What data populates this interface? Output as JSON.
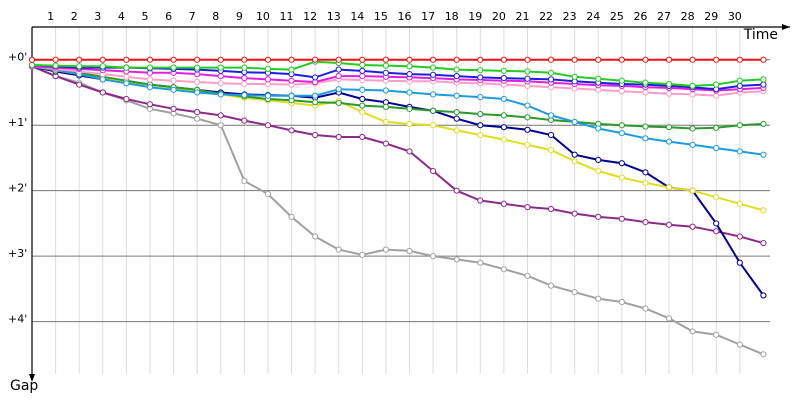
{
  "chart_data": {
    "type": "line",
    "x_label": "Time",
    "y_label": "Gap",
    "x": [
      0,
      1,
      2,
      3,
      4,
      5,
      6,
      7,
      8,
      9,
      10,
      11,
      12,
      13,
      14,
      15,
      16,
      17,
      18,
      19,
      20,
      21,
      22,
      23,
      24,
      25,
      26,
      27,
      28,
      29,
      30,
      31
    ],
    "xlim": [
      0,
      32
    ],
    "xticks": [
      1,
      2,
      3,
      4,
      5,
      6,
      7,
      8,
      9,
      10,
      11,
      12,
      13,
      14,
      15,
      16,
      17,
      18,
      19,
      20,
      21,
      22,
      23,
      24,
      25,
      26,
      27,
      28,
      29,
      30
    ],
    "ylim": [
      -0.5,
      4.8
    ],
    "yticks": [
      {
        "value": 0,
        "label": "+0'"
      },
      {
        "value": 1,
        "label": "+1'"
      },
      {
        "value": 2,
        "label": "+2'"
      },
      {
        "value": 3,
        "label": "+3'"
      },
      {
        "value": 4,
        "label": "+4'"
      }
    ],
    "y_inverted": true,
    "grid": true,
    "series": [
      {
        "color": "#a0a0a0",
        "values": [
          0.1,
          0.25,
          0.35,
          0.5,
          0.62,
          0.75,
          0.82,
          0.9,
          1.0,
          1.85,
          2.05,
          2.4,
          2.7,
          2.9,
          2.98,
          2.9,
          2.92,
          3.0,
          3.05,
          3.1,
          3.2,
          3.3,
          3.45,
          3.55,
          3.65,
          3.7,
          3.8,
          3.95,
          4.15,
          4.2,
          4.35,
          4.5
        ]
      },
      {
        "color": "#8c2a8c",
        "values": [
          0.1,
          0.25,
          0.38,
          0.5,
          0.6,
          0.68,
          0.75,
          0.8,
          0.85,
          0.93,
          1.0,
          1.08,
          1.15,
          1.18,
          1.18,
          1.28,
          1.4,
          1.7,
          2.0,
          2.15,
          2.2,
          2.25,
          2.28,
          2.35,
          2.4,
          2.43,
          2.48,
          2.52,
          2.55,
          2.62,
          2.7,
          2.8
        ]
      },
      {
        "color": "#000090",
        "values": [
          0.1,
          0.18,
          0.24,
          0.3,
          0.33,
          0.38,
          0.42,
          0.46,
          0.5,
          0.53,
          0.54,
          0.55,
          0.58,
          0.5,
          0.6,
          0.65,
          0.72,
          0.78,
          0.9,
          1.0,
          1.03,
          1.07,
          1.15,
          1.45,
          1.53,
          1.58,
          1.72,
          1.95,
          2.0,
          2.5,
          3.1,
          3.6
        ]
      },
      {
        "color": "#dede20",
        "values": [
          0.1,
          0.16,
          0.22,
          0.28,
          0.33,
          0.38,
          0.43,
          0.48,
          0.53,
          0.58,
          0.62,
          0.66,
          0.7,
          0.63,
          0.8,
          0.95,
          0.98,
          1.0,
          1.08,
          1.15,
          1.22,
          1.3,
          1.38,
          1.55,
          1.7,
          1.8,
          1.88,
          1.95,
          2.0,
          2.1,
          2.2,
          2.3
        ]
      },
      {
        "color": "#2a9a2a",
        "values": [
          0.1,
          0.15,
          0.2,
          0.26,
          0.32,
          0.38,
          0.42,
          0.46,
          0.52,
          0.56,
          0.6,
          0.62,
          0.65,
          0.66,
          0.7,
          0.72,
          0.75,
          0.78,
          0.8,
          0.83,
          0.85,
          0.88,
          0.92,
          0.95,
          0.98,
          1.0,
          1.02,
          1.03,
          1.05,
          1.04,
          1.0,
          0.98
        ]
      },
      {
        "color": "#1e9be0",
        "values": [
          0.1,
          0.15,
          0.22,
          0.3,
          0.36,
          0.42,
          0.46,
          0.5,
          0.53,
          0.54,
          0.55,
          0.55,
          0.55,
          0.45,
          0.46,
          0.47,
          0.5,
          0.53,
          0.55,
          0.57,
          0.6,
          0.7,
          0.85,
          0.95,
          1.05,
          1.12,
          1.2,
          1.25,
          1.3,
          1.35,
          1.4,
          1.45
        ]
      },
      {
        "color": "#ff9ec8",
        "values": [
          0.1,
          0.14,
          0.18,
          0.22,
          0.26,
          0.3,
          0.32,
          0.34,
          0.36,
          0.37,
          0.37,
          0.38,
          0.36,
          0.3,
          0.31,
          0.32,
          0.33,
          0.33,
          0.35,
          0.36,
          0.38,
          0.4,
          0.42,
          0.44,
          0.46,
          0.48,
          0.5,
          0.52,
          0.53,
          0.55,
          0.5,
          0.48
        ]
      },
      {
        "color": "#e020e0",
        "values": [
          0.1,
          0.12,
          0.14,
          0.16,
          0.18,
          0.2,
          0.2,
          0.22,
          0.25,
          0.28,
          0.3,
          0.32,
          0.34,
          0.25,
          0.25,
          0.26,
          0.27,
          0.28,
          0.3,
          0.31,
          0.32,
          0.33,
          0.35,
          0.37,
          0.39,
          0.4,
          0.42,
          0.43,
          0.45,
          0.47,
          0.45,
          0.43
        ]
      },
      {
        "color": "#1e1ee0",
        "values": [
          0.08,
          0.1,
          0.12,
          0.12,
          0.12,
          0.13,
          0.14,
          0.15,
          0.17,
          0.19,
          0.2,
          0.22,
          0.27,
          0.15,
          0.17,
          0.2,
          0.22,
          0.23,
          0.25,
          0.27,
          0.28,
          0.29,
          0.3,
          0.33,
          0.35,
          0.37,
          0.38,
          0.4,
          0.42,
          0.45,
          0.4,
          0.38
        ]
      },
      {
        "color": "#22cc22",
        "values": [
          0.08,
          0.09,
          0.1,
          0.1,
          0.12,
          0.12,
          0.12,
          0.12,
          0.12,
          0.12,
          0.14,
          0.15,
          0.03,
          0.05,
          0.08,
          0.09,
          0.1,
          0.12,
          0.15,
          0.16,
          0.17,
          0.18,
          0.2,
          0.26,
          0.29,
          0.32,
          0.35,
          0.37,
          0.4,
          0.38,
          0.32,
          0.3
        ]
      },
      {
        "color": "#ee1111",
        "values": [
          0,
          0,
          0,
          0,
          0,
          0,
          0,
          0,
          0,
          0,
          0,
          0,
          0,
          0,
          0,
          0,
          0,
          0,
          0,
          0,
          0,
          0,
          0,
          0,
          0,
          0,
          0,
          0,
          0,
          0,
          0,
          0
        ]
      }
    ]
  }
}
